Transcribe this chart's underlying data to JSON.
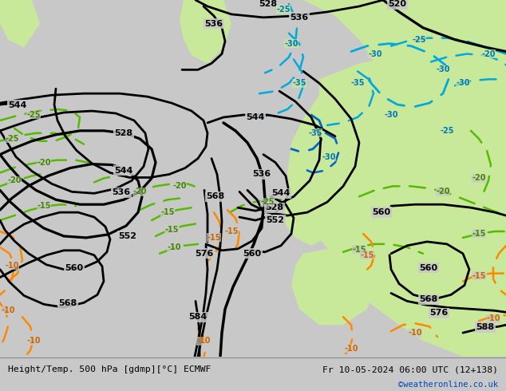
{
  "title_left": "Height/Temp. 500 hPa [gdmp][°C] ECMWF",
  "title_right": "Fr 10-05-2024 06:00 UTC (12+138)",
  "copyright": "©weatheronline.co.uk",
  "fig_width": 6.34,
  "fig_height": 4.9,
  "dpi": 100,
  "bg_color": "#c8c8c8",
  "warm_color": "#c8e89a",
  "bottom_bg": "#e8e8e8",
  "geop_color": "#000000",
  "temp_green": "#55bb00",
  "temp_cyan": "#00aadd",
  "temp_blue": "#0066cc",
  "temp_orange": "#ff8800",
  "copyright_color": "#0044bb",
  "geop_lw": 2.0,
  "temp_lw": 1.8
}
